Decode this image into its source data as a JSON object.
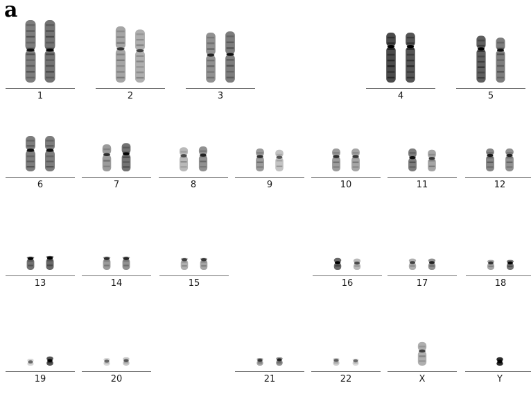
{
  "figure": {
    "panel_label": "a",
    "chromosomes": [
      {
        "label": "1",
        "pair": [
          {
            "len": 1.0,
            "cen": 0.48,
            "dark": 0.55
          },
          {
            "len": 1.0,
            "cen": 0.48,
            "dark": 0.6
          }
        ]
      },
      {
        "label": "2",
        "pair": [
          {
            "len": 0.9,
            "cen": 0.4,
            "dark": 0.35
          },
          {
            "len": 0.85,
            "cen": 0.4,
            "dark": 0.3
          }
        ]
      },
      {
        "label": "3",
        "pair": [
          {
            "len": 0.8,
            "cen": 0.45,
            "dark": 0.45
          },
          {
            "len": 0.82,
            "cen": 0.45,
            "dark": 0.55
          }
        ]
      },
      {
        "label": "4",
        "pair": [
          {
            "len": 0.8,
            "cen": 0.28,
            "dark": 0.8
          },
          {
            "len": 0.8,
            "cen": 0.28,
            "dark": 0.75
          }
        ]
      },
      {
        "label": "5",
        "pair": [
          {
            "len": 0.75,
            "cen": 0.28,
            "dark": 0.7
          },
          {
            "len": 0.72,
            "cen": 0.28,
            "dark": 0.55
          }
        ]
      },
      {
        "label": "6",
        "pair": [
          {
            "len": 0.85,
            "cen": 0.4,
            "dark": 0.55
          },
          {
            "len": 0.85,
            "cen": 0.4,
            "dark": 0.55
          }
        ]
      },
      {
        "label": "7",
        "pair": [
          {
            "len": 0.65,
            "cen": 0.38,
            "dark": 0.4
          },
          {
            "len": 0.68,
            "cen": 0.38,
            "dark": 0.6
          }
        ]
      },
      {
        "label": "8",
        "pair": [
          {
            "len": 0.58,
            "cen": 0.35,
            "dark": 0.25
          },
          {
            "len": 0.6,
            "cen": 0.35,
            "dark": 0.45
          }
        ]
      },
      {
        "label": "9",
        "pair": [
          {
            "len": 0.55,
            "cen": 0.35,
            "dark": 0.4
          },
          {
            "len": 0.52,
            "cen": 0.35,
            "dark": 0.2
          }
        ]
      },
      {
        "label": "10",
        "pair": [
          {
            "len": 0.55,
            "cen": 0.35,
            "dark": 0.4
          },
          {
            "len": 0.55,
            "cen": 0.35,
            "dark": 0.35
          }
        ]
      },
      {
        "label": "11",
        "pair": [
          {
            "len": 0.55,
            "cen": 0.4,
            "dark": 0.55
          },
          {
            "len": 0.52,
            "cen": 0.4,
            "dark": 0.35
          }
        ]
      },
      {
        "label": "12",
        "pair": [
          {
            "len": 0.55,
            "cen": 0.3,
            "dark": 0.5
          },
          {
            "len": 0.55,
            "cen": 0.3,
            "dark": 0.45
          }
        ]
      },
      {
        "label": "13",
        "pair": [
          {
            "len": 0.4,
            "cen": 0.15,
            "dark": 0.6
          },
          {
            "len": 0.42,
            "cen": 0.15,
            "dark": 0.65
          }
        ]
      },
      {
        "label": "14",
        "pair": [
          {
            "len": 0.4,
            "cen": 0.15,
            "dark": 0.4
          },
          {
            "len": 0.4,
            "cen": 0.15,
            "dark": 0.45
          }
        ]
      },
      {
        "label": "15",
        "pair": [
          {
            "len": 0.36,
            "cen": 0.15,
            "dark": 0.3
          },
          {
            "len": 0.36,
            "cen": 0.15,
            "dark": 0.35
          }
        ]
      },
      {
        "label": "16",
        "pair": [
          {
            "len": 0.36,
            "cen": 0.4,
            "dark": 0.65
          },
          {
            "len": 0.34,
            "cen": 0.4,
            "dark": 0.25
          }
        ]
      },
      {
        "label": "17",
        "pair": [
          {
            "len": 0.34,
            "cen": 0.35,
            "dark": 0.3
          },
          {
            "len": 0.34,
            "cen": 0.35,
            "dark": 0.45
          }
        ]
      },
      {
        "label": "18",
        "pair": [
          {
            "len": 0.3,
            "cen": 0.3,
            "dark": 0.35
          },
          {
            "len": 0.3,
            "cen": 0.3,
            "dark": 0.6
          }
        ]
      },
      {
        "label": "19",
        "pair": [
          {
            "len": 0.18,
            "cen": 0.45,
            "dark": 0.1
          },
          {
            "len": 0.24,
            "cen": 0.45,
            "dark": 0.75
          }
        ]
      },
      {
        "label": "20",
        "pair": [
          {
            "len": 0.2,
            "cen": 0.4,
            "dark": 0.1
          },
          {
            "len": 0.22,
            "cen": 0.4,
            "dark": 0.18
          }
        ]
      },
      {
        "label": "21",
        "pair": [
          {
            "len": 0.2,
            "cen": 0.3,
            "dark": 0.35
          },
          {
            "len": 0.22,
            "cen": 0.3,
            "dark": 0.45
          }
        ]
      },
      {
        "label": "22",
        "pair": [
          {
            "len": 0.2,
            "cen": 0.3,
            "dark": 0.15
          },
          {
            "len": 0.16,
            "cen": 0.3,
            "dark": 0.08
          }
        ]
      },
      {
        "label": "X",
        "pair": [
          {
            "len": 0.62,
            "cen": 0.38,
            "dark": 0.3
          }
        ]
      },
      {
        "label": "Y",
        "pair": [
          {
            "len": 0.22,
            "cen": 0.5,
            "dark": 0.95
          }
        ]
      }
    ]
  }
}
